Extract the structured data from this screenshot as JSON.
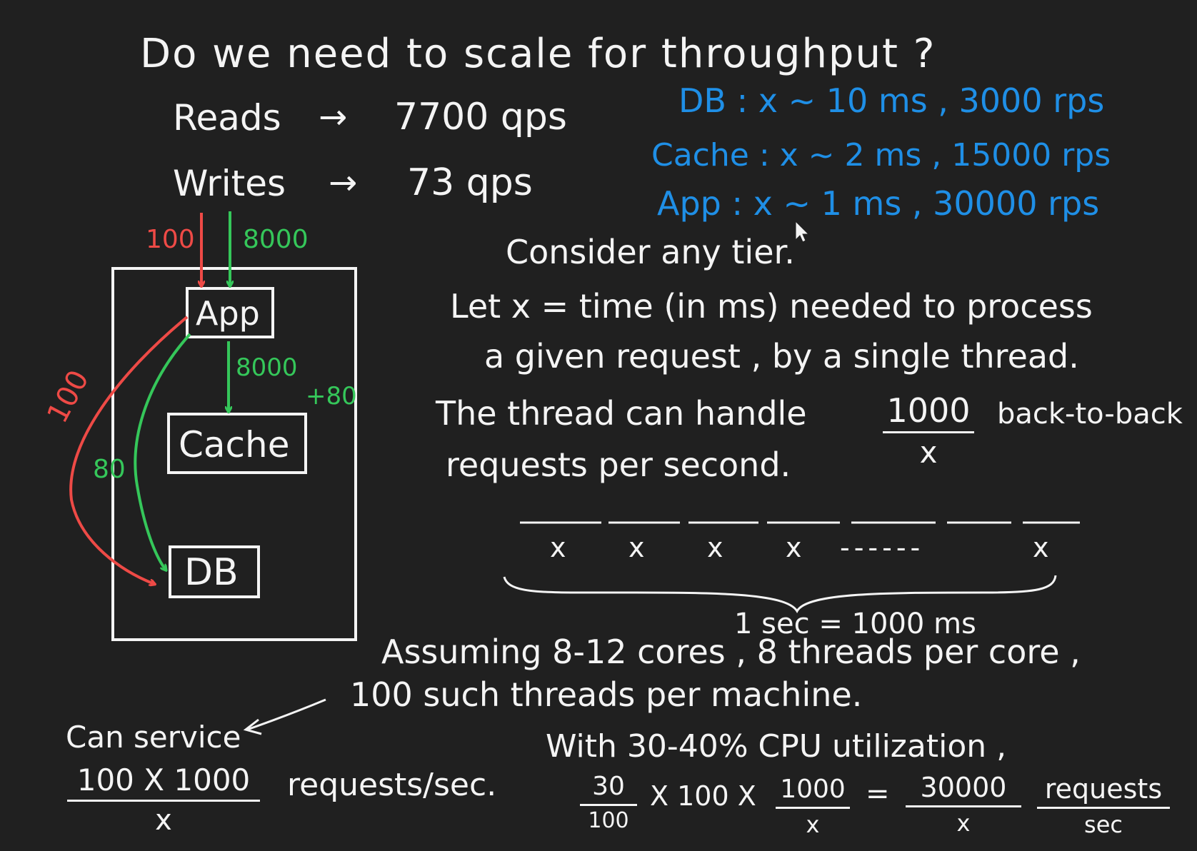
{
  "title": "Do we need to scale for throughput ?",
  "load": [
    {
      "label": "Reads",
      "value": "7700 qps"
    },
    {
      "label": "Writes",
      "value": "73 qps"
    }
  ],
  "tiers": [
    {
      "text": "DB : x ~ 10 ms , 3000 rps"
    },
    {
      "text": "Cache : x ~ 2 ms , 15000 rps"
    },
    {
      "text": "App : x ~ 1 ms , 30000 rps"
    }
  ],
  "diagram": {
    "nodes": {
      "app": "App",
      "cache": "Cache",
      "db": "DB"
    },
    "edges": {
      "write_in": "100",
      "read_in": "8000",
      "app_to_cache": "8000",
      "cache_miss_plus": "+80",
      "app_to_db_write": "100",
      "app_to_db_read": "80"
    }
  },
  "explain": {
    "consider": "Consider any tier.",
    "let_line1": "Let x = time (in ms) needed to process",
    "let_line2": "a given request , by a single thread.",
    "thread_pre": "The thread can handle",
    "thread_num": "1000",
    "thread_den": "x",
    "thread_post": "back-to-back",
    "thread_line2": "requests per second.",
    "slots": [
      "x",
      "x",
      "x",
      "x",
      "------",
      "x"
    ],
    "second": "1 sec = 1000 ms"
  },
  "assume": {
    "line1": "Assuming 8-12 cores , 8 threads per core ,",
    "line2": "100 such threads per machine."
  },
  "service": {
    "label": "Can service",
    "num": "100 X 1000",
    "den": "x",
    "unit": "requests/sec."
  },
  "cpu": {
    "line": "With 30-40% CPU utilization ,",
    "frac1_num": "30",
    "frac1_den": "100",
    "mid": "X 100 X",
    "frac2_num": "1000",
    "frac2_den": "x",
    "eq": "=",
    "frac3_num": "30000",
    "frac3_den": "x",
    "unit_num": "requests",
    "unit_den": "sec"
  },
  "colors": {
    "background": "#202020",
    "ink": "#f4f4f4",
    "blue": "#1f8fe6",
    "red": "#ee4a46",
    "green": "#35c75a"
  }
}
